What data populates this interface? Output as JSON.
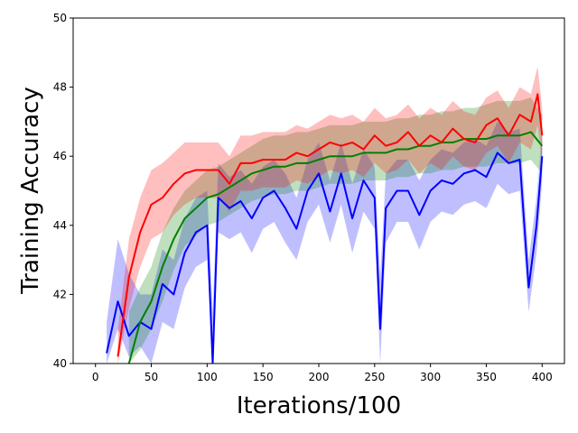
{
  "chart_data": {
    "type": "line",
    "xlabel": "Iterations/100",
    "ylabel": "Training Accuracy",
    "xlim": [
      -20,
      420
    ],
    "ylim": [
      40,
      50
    ],
    "xticks": [
      0,
      50,
      100,
      150,
      200,
      250,
      300,
      350,
      400
    ],
    "yticks": [
      40,
      42,
      44,
      46,
      48,
      50
    ],
    "grid": false,
    "legend": "none",
    "series": [
      {
        "color": "#0000ff",
        "band_opacity": 0.25,
        "x": [
          10,
          20,
          30,
          40,
          50,
          60,
          70,
          80,
          90,
          100,
          105,
          110,
          120,
          130,
          140,
          150,
          160,
          170,
          180,
          190,
          200,
          210,
          220,
          230,
          240,
          250,
          255,
          260,
          270,
          280,
          290,
          300,
          310,
          320,
          330,
          340,
          350,
          360,
          370,
          380,
          388,
          395,
          400
        ],
        "y": [
          40.3,
          41.8,
          40.8,
          41.2,
          41.0,
          42.3,
          42.0,
          43.2,
          43.8,
          44.0,
          40.0,
          44.8,
          44.5,
          44.7,
          44.2,
          44.8,
          45.0,
          44.5,
          43.9,
          45.0,
          45.5,
          44.4,
          45.5,
          44.2,
          45.3,
          44.8,
          41.0,
          44.5,
          45.0,
          45.0,
          44.3,
          45.0,
          45.3,
          45.2,
          45.5,
          45.6,
          45.4,
          46.1,
          45.8,
          45.9,
          42.2,
          44.0,
          46.0
        ],
        "lower": [
          40.0,
          41.0,
          40.2,
          40.5,
          40.0,
          41.2,
          41.0,
          42.2,
          42.8,
          43.0,
          40.0,
          43.8,
          43.6,
          43.8,
          43.2,
          43.9,
          44.1,
          43.5,
          43.0,
          44.1,
          44.6,
          43.5,
          44.6,
          43.2,
          44.4,
          43.9,
          40.0,
          43.5,
          44.1,
          44.1,
          43.3,
          44.1,
          44.4,
          44.3,
          44.6,
          44.7,
          44.5,
          45.2,
          44.9,
          45.0,
          41.5,
          43.2,
          45.3
        ],
        "upper": [
          41.2,
          43.6,
          42.6,
          42.0,
          42.0,
          43.3,
          43.0,
          44.2,
          44.8,
          45.0,
          41.5,
          45.8,
          45.4,
          45.6,
          45.2,
          45.7,
          45.9,
          45.5,
          44.8,
          45.9,
          46.4,
          45.3,
          46.4,
          45.2,
          46.2,
          45.7,
          42.5,
          45.5,
          45.9,
          45.9,
          45.3,
          45.9,
          46.2,
          46.1,
          46.4,
          46.5,
          46.3,
          47.0,
          46.7,
          46.8,
          43.0,
          44.8,
          46.7
        ]
      },
      {
        "color": "#008000",
        "band_opacity": 0.25,
        "x": [
          30,
          40,
          50,
          60,
          70,
          80,
          90,
          100,
          110,
          120,
          130,
          140,
          150,
          160,
          170,
          180,
          190,
          200,
          210,
          220,
          230,
          240,
          250,
          260,
          270,
          280,
          290,
          300,
          310,
          320,
          330,
          340,
          350,
          360,
          370,
          380,
          390,
          400
        ],
        "y": [
          40.0,
          41.2,
          41.8,
          42.8,
          43.6,
          44.2,
          44.5,
          44.8,
          44.9,
          45.1,
          45.3,
          45.5,
          45.6,
          45.7,
          45.7,
          45.8,
          45.8,
          45.9,
          46.0,
          46.0,
          46.0,
          46.1,
          46.1,
          46.1,
          46.2,
          46.2,
          46.3,
          46.3,
          46.4,
          46.4,
          46.5,
          46.5,
          46.5,
          46.6,
          46.6,
          46.6,
          46.7,
          46.3
        ],
        "lower": [
          40.0,
          40.4,
          41.0,
          41.8,
          42.7,
          43.4,
          43.7,
          44.0,
          44.1,
          44.3,
          44.5,
          44.7,
          44.8,
          44.9,
          44.9,
          45.0,
          45.0,
          45.1,
          45.2,
          45.2,
          45.2,
          45.3,
          45.3,
          45.3,
          45.4,
          45.4,
          45.5,
          45.5,
          45.6,
          45.6,
          45.7,
          45.7,
          45.7,
          45.8,
          45.8,
          45.8,
          45.9,
          45.5
        ],
        "upper": [
          41.5,
          42.2,
          42.8,
          43.8,
          44.5,
          45.0,
          45.3,
          45.6,
          45.7,
          45.9,
          46.1,
          46.3,
          46.5,
          46.6,
          46.6,
          46.7,
          46.7,
          46.8,
          46.9,
          46.9,
          46.9,
          47.0,
          47.0,
          47.0,
          47.1,
          47.1,
          47.2,
          47.2,
          47.3,
          47.3,
          47.4,
          47.4,
          47.5,
          47.6,
          47.6,
          47.6,
          47.7,
          47.2
        ]
      },
      {
        "color": "#ff0000",
        "band_opacity": 0.25,
        "x": [
          20,
          30,
          40,
          50,
          60,
          70,
          80,
          90,
          100,
          110,
          120,
          130,
          140,
          150,
          160,
          170,
          180,
          190,
          200,
          210,
          220,
          230,
          240,
          250,
          260,
          270,
          280,
          290,
          300,
          310,
          320,
          330,
          340,
          350,
          360,
          370,
          380,
          390,
          396,
          400
        ],
        "y": [
          40.2,
          42.5,
          43.8,
          44.6,
          44.8,
          45.2,
          45.5,
          45.6,
          45.6,
          45.6,
          45.2,
          45.8,
          45.8,
          45.9,
          45.9,
          45.9,
          46.1,
          46.0,
          46.2,
          46.4,
          46.3,
          46.4,
          46.2,
          46.6,
          46.3,
          46.4,
          46.7,
          46.3,
          46.6,
          46.4,
          46.8,
          46.5,
          46.4,
          46.9,
          47.1,
          46.6,
          47.2,
          47.0,
          47.8,
          46.6
        ],
        "lower": [
          40.0,
          41.6,
          42.8,
          43.6,
          43.8,
          44.3,
          44.6,
          44.8,
          44.8,
          44.8,
          44.4,
          45.0,
          45.0,
          45.1,
          45.1,
          45.1,
          45.3,
          45.2,
          45.4,
          45.6,
          45.5,
          45.6,
          45.4,
          45.8,
          45.5,
          45.6,
          45.9,
          45.5,
          45.8,
          45.6,
          46.0,
          45.7,
          45.6,
          46.1,
          46.3,
          45.8,
          46.4,
          46.2,
          46.9,
          45.8
        ],
        "upper": [
          41.0,
          43.6,
          44.8,
          45.6,
          45.8,
          46.1,
          46.4,
          46.4,
          46.4,
          46.4,
          46.0,
          46.6,
          46.6,
          46.7,
          46.7,
          46.7,
          46.9,
          46.8,
          47.0,
          47.2,
          47.1,
          47.2,
          47.0,
          47.4,
          47.1,
          47.2,
          47.5,
          47.1,
          47.4,
          47.2,
          47.6,
          47.3,
          47.2,
          47.7,
          47.9,
          47.4,
          48.0,
          47.8,
          48.6,
          47.4
        ]
      }
    ]
  }
}
